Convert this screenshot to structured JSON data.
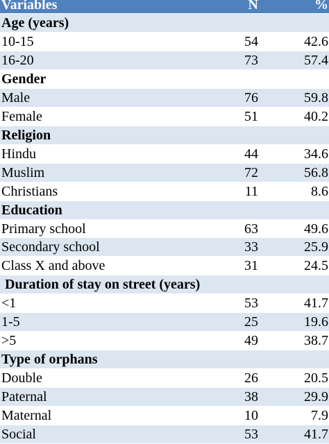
{
  "table": {
    "header": [
      "Variables",
      "N",
      "%"
    ],
    "sections": [
      {
        "title": "Age (years)",
        "rows": [
          [
            "10-15",
            54,
            42.6
          ],
          [
            "16-20",
            73,
            57.4
          ]
        ]
      },
      {
        "title": "Gender",
        "rows": [
          [
            "Male",
            76,
            59.8
          ],
          [
            "Female",
            51,
            40.2
          ]
        ]
      },
      {
        "title": "Religion",
        "rows": [
          [
            "Hindu",
            44,
            34.6
          ],
          [
            "Muslim",
            72,
            56.8
          ],
          [
            "Christians",
            11,
            8.6
          ]
        ]
      },
      {
        "title": "Education",
        "rows": [
          [
            "Primary school",
            63,
            49.6
          ],
          [
            "Secondary school",
            33,
            25.9
          ],
          [
            "Class X and above",
            31,
            24.5
          ]
        ]
      },
      {
        "title": " Duration of stay on street (years)",
        "rows": [
          [
            "<1",
            53,
            41.7
          ],
          [
            "1-5",
            25,
            19.6
          ],
          [
            ">5",
            49,
            38.7
          ]
        ]
      },
      {
        "title": "Type of orphans",
        "rows": [
          [
            "Double",
            26,
            20.5
          ],
          [
            "Paternal",
            38,
            29.9
          ],
          [
            "Maternal",
            10,
            7.9
          ],
          [
            "Social",
            53,
            41.7
          ]
        ]
      }
    ]
  }
}
